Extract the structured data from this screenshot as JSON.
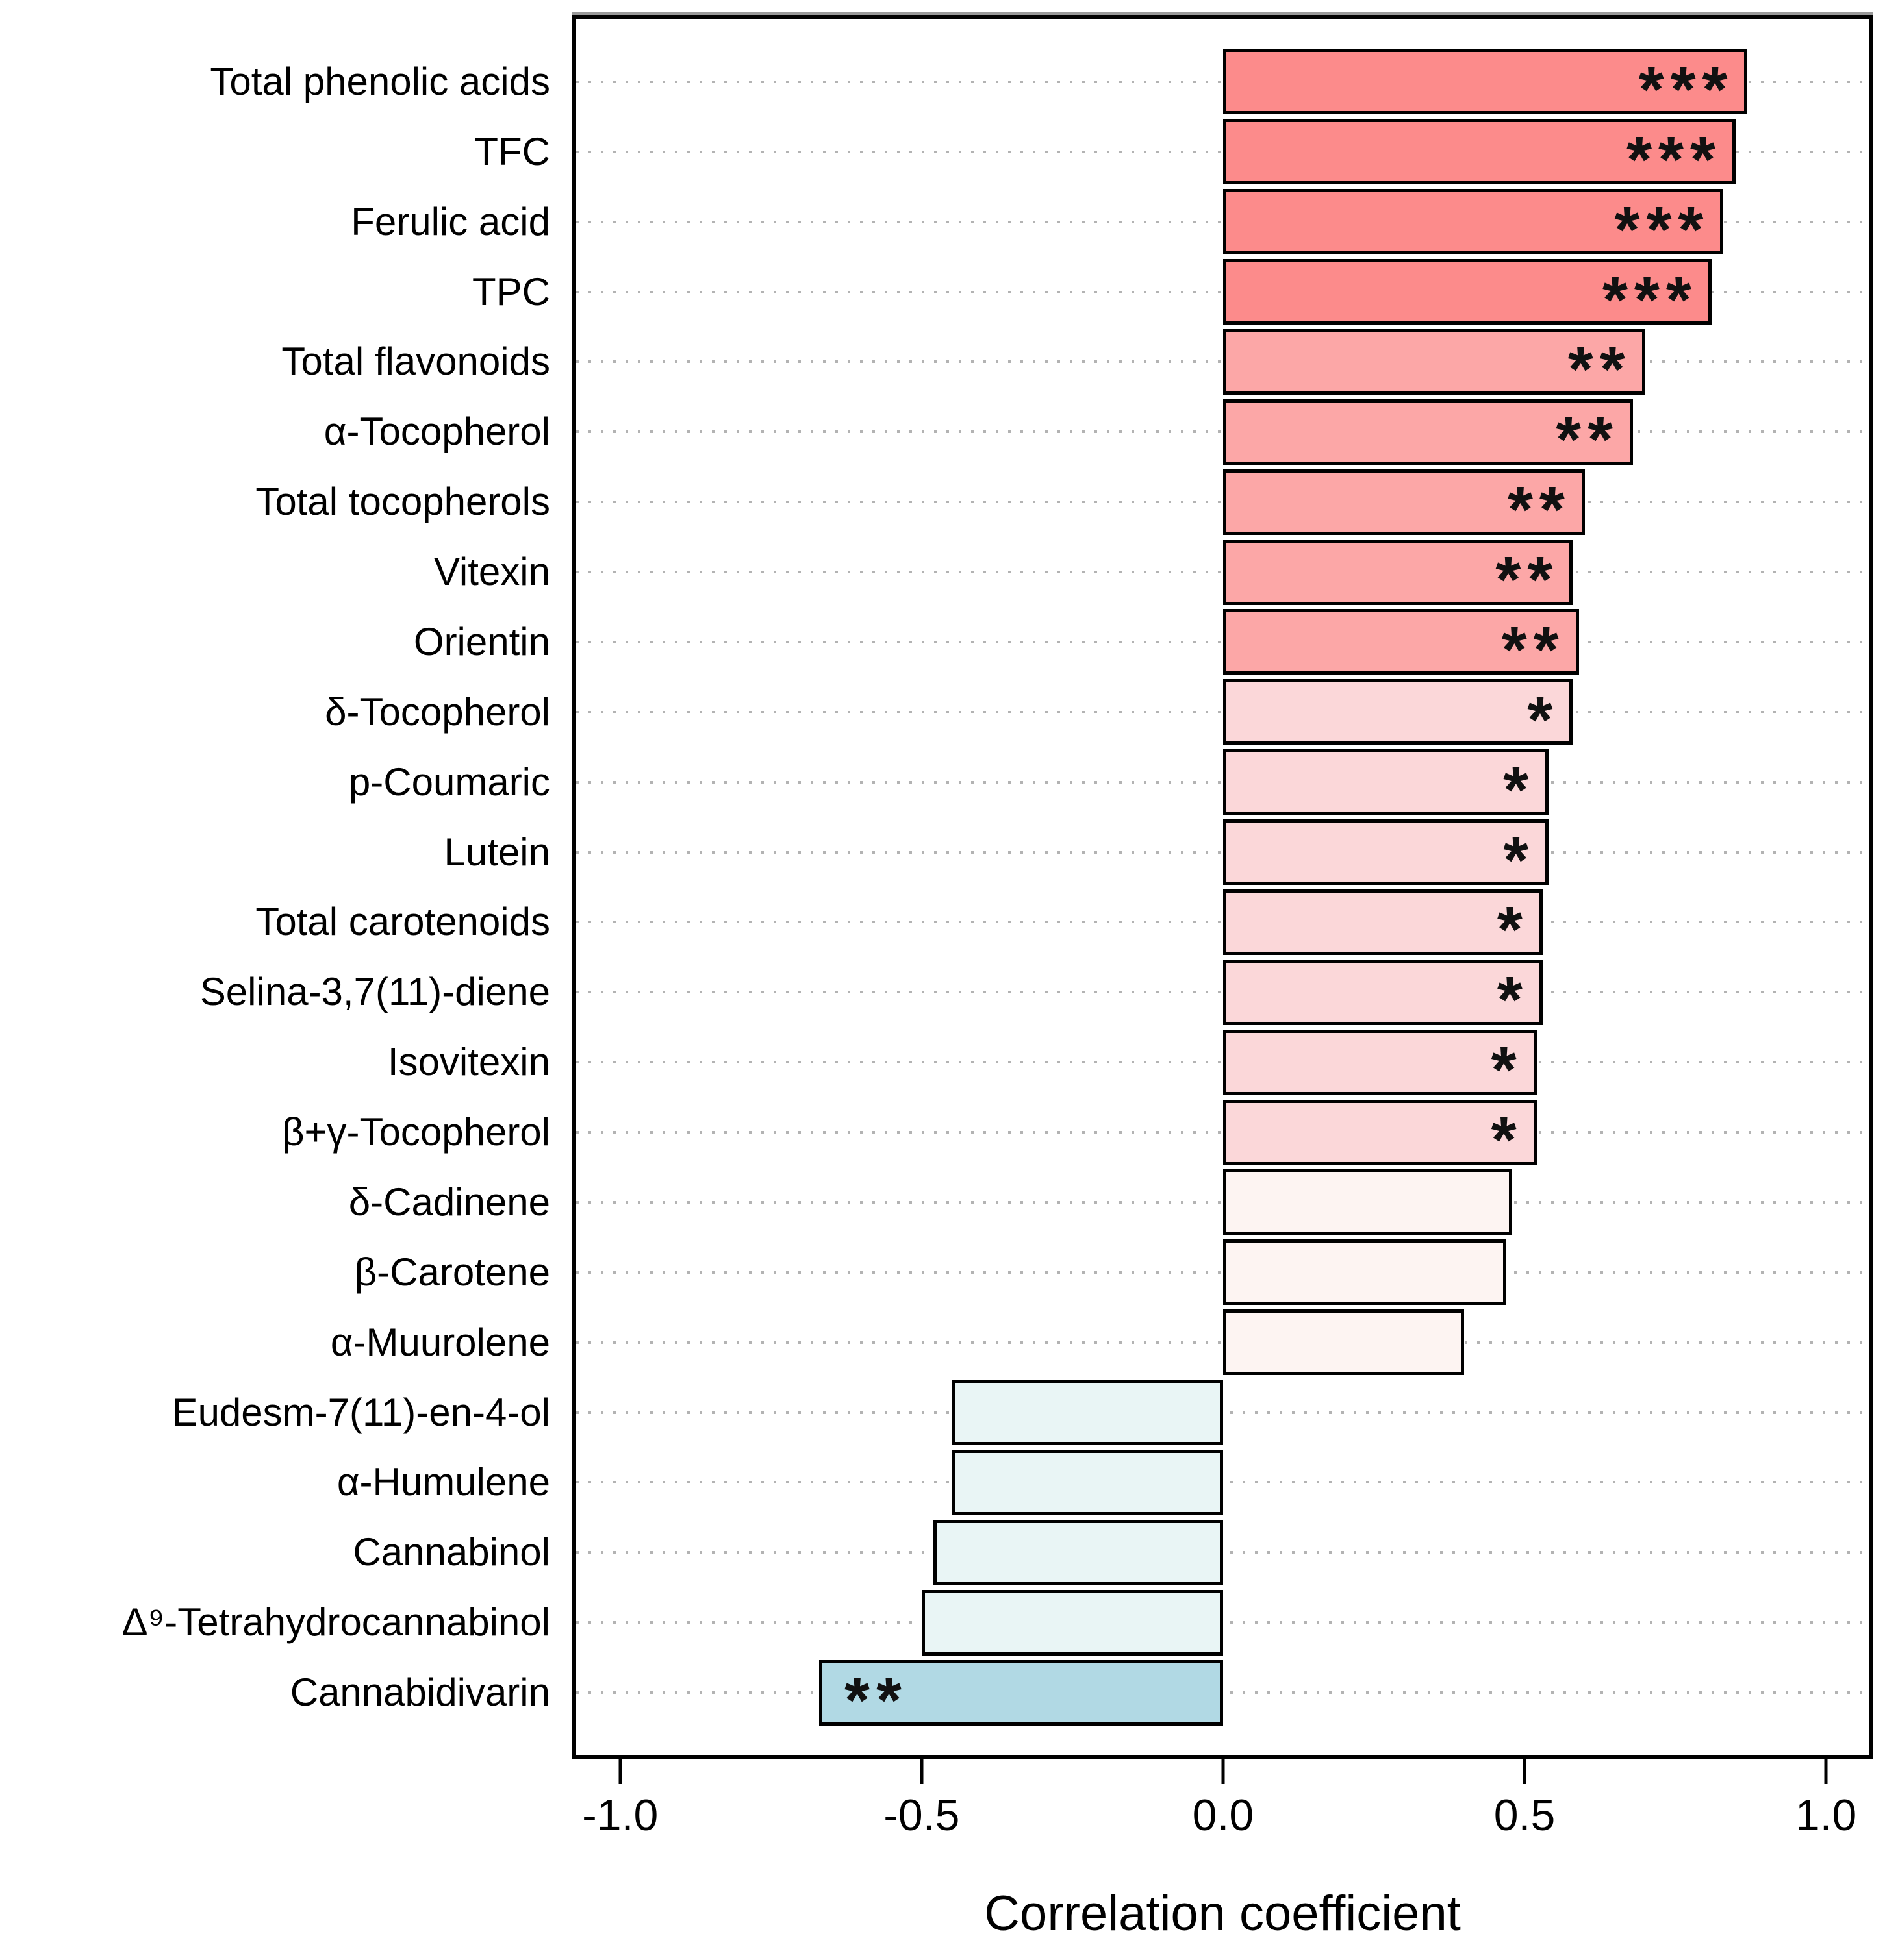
{
  "chart_data": {
    "type": "bar",
    "orientation": "horizontal",
    "title": "",
    "xlabel": "Correlation coefficient",
    "ylabel": "",
    "xlim": [
      -1.0,
      1.0
    ],
    "grid": "dotted-horizontal",
    "x_ticks": [
      {
        "value": -1.0,
        "label": "-1.0"
      },
      {
        "value": -0.5,
        "label": "-0.5"
      },
      {
        "value": 0.0,
        "label": "0.0"
      },
      {
        "value": 0.5,
        "label": "0.5"
      },
      {
        "value": 1.0,
        "label": "1.0"
      }
    ],
    "categories": [
      "Total phenolic acids",
      "TFC",
      "Ferulic acid",
      "TPC",
      "Total flavonoids",
      "α-Tocopherol",
      "Total tocopherols",
      "Vitexin",
      "Orientin",
      "δ-Tocopherol",
      "p-Coumaric",
      "Lutein",
      "Total carotenoids",
      "Selina-3,7(11)-diene",
      "Isovitexin",
      "β+γ-Tocopherol",
      "δ-Cadinene",
      "β-Carotene",
      "α-Muurolene",
      "Eudesm-7(11)-en-4-ol",
      "α-Humulene",
      "Cannabinol",
      "Δ⁹-Tetrahydrocannabinol",
      "Cannabidivarin"
    ],
    "values": [
      0.87,
      0.85,
      0.83,
      0.81,
      0.7,
      0.68,
      0.6,
      0.58,
      0.59,
      0.58,
      0.54,
      0.54,
      0.53,
      0.53,
      0.52,
      0.52,
      0.48,
      0.47,
      0.4,
      -0.45,
      -0.45,
      -0.48,
      -0.5,
      -0.67
    ],
    "significance": [
      "***",
      "***",
      "***",
      "***",
      "**",
      "**",
      "**",
      "**",
      "**",
      "*",
      "*",
      "*",
      "*",
      "*",
      "*",
      "*",
      "",
      "",
      "",
      "",
      "",
      "",
      "",
      "**"
    ],
    "bar_colors": [
      "#fc8b8b",
      "#fc8b8b",
      "#fc8b8b",
      "#fc8b8b",
      "#fca7a7",
      "#fca7a7",
      "#fca7a7",
      "#fca7a7",
      "#fca7a7",
      "#fbd7d9",
      "#fbd7d9",
      "#fbd7d9",
      "#fbd7d9",
      "#fbd7d9",
      "#fbd7d9",
      "#fbd7d9",
      "#fdf4f2",
      "#fdf4f2",
      "#fdf4f2",
      "#e9f5f5",
      "#e9f5f5",
      "#e9f5f5",
      "#e9f5f5",
      "#b1d9e4"
    ]
  },
  "style": {
    "significance_palette": {
      "positive_strong": "#fc8b8b",
      "positive_medium": "#fca7a7",
      "positive_weak": "#fbd7d9",
      "positive_ns": "#fdf4f2",
      "negative_ns": "#e9f5f5",
      "negative_strong": "#b1d9e4"
    },
    "bar_border_color": "#000000",
    "grid_color": "#b3b3b3",
    "star_color": "#111111"
  }
}
